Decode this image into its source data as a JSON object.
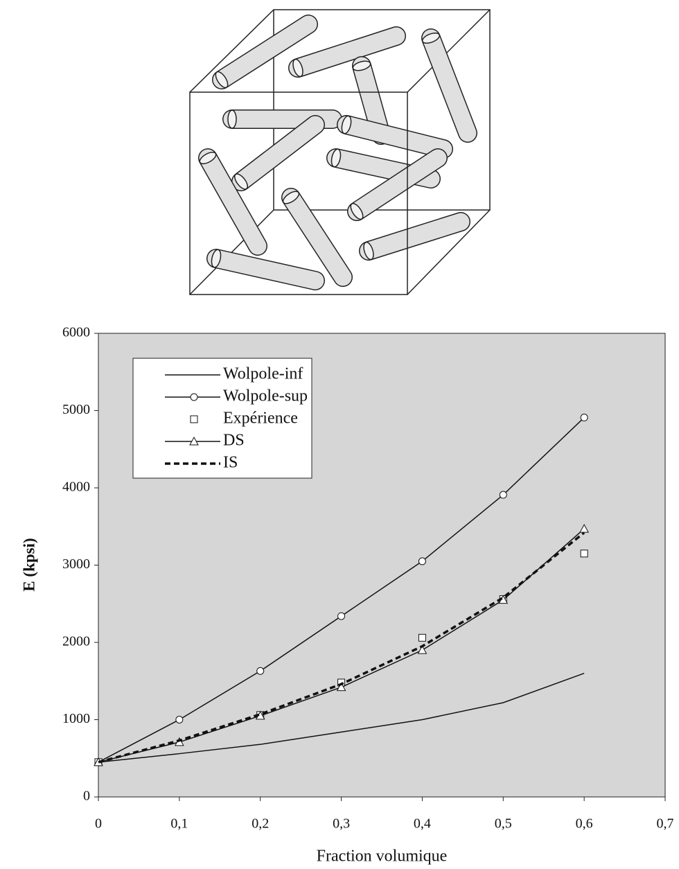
{
  "chart_data": {
    "type": "line",
    "xlabel": "Fraction volumique",
    "ylabel": "E (kpsi)",
    "x": [
      0,
      0.1,
      0.2,
      0.3,
      0.4,
      0.5,
      0.6
    ],
    "xlim": [
      0,
      0.7
    ],
    "xticks": [
      0,
      {
        "value": 0.1,
        "label": "0,1"
      },
      {
        "value": 0.2,
        "label": "0,2"
      },
      {
        "value": 0.3,
        "label": "0,3"
      },
      {
        "value": 0.4,
        "label": "0,4"
      },
      {
        "value": 0.5,
        "label": "0,5"
      },
      {
        "value": 0.6,
        "label": "0,6"
      },
      {
        "value": 0.7,
        "label": "0,7"
      }
    ],
    "ylim": [
      0,
      6000
    ],
    "yticks": [
      0,
      1000,
      2000,
      3000,
      4000,
      5000,
      6000
    ],
    "series": [
      {
        "name": "Wolpole-inf",
        "color": "#111111",
        "line": "solid",
        "marker": null,
        "values": [
          450,
          560,
          680,
          840,
          1000,
          1220,
          1600
        ]
      },
      {
        "name": "Wolpole-sup",
        "color": "#111111",
        "line": "solid",
        "marker": "circle",
        "values": [
          450,
          1000,
          1630,
          2340,
          3050,
          3910,
          4910
        ]
      },
      {
        "name": "Expérience",
        "color": "#111111",
        "line": "none",
        "marker": "square",
        "values": [
          450,
          null,
          1060,
          1480,
          2060,
          2560,
          3150
        ]
      },
      {
        "name": "DS",
        "color": "#111111",
        "line": "solid",
        "marker": "triangle",
        "values": [
          450,
          710,
          1050,
          1420,
          1900,
          2550,
          3470
        ]
      },
      {
        "name": "IS",
        "color": "#111111",
        "line": "dashed",
        "marker": null,
        "values": [
          450,
          730,
          1070,
          1460,
          1950,
          2580,
          3420
        ]
      }
    ]
  }
}
